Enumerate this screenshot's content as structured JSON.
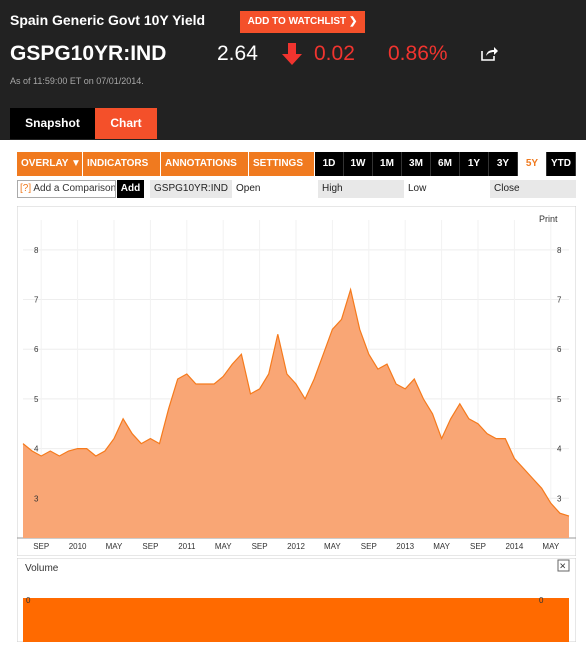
{
  "header": {
    "title": "Spain Generic Govt 10Y Yield",
    "watchlist_label": "ADD TO WATCHLIST",
    "ticker": "GSPG10YR:IND",
    "price": "2.64",
    "change": "0.02",
    "change_pct": "0.86%",
    "as_of": "As of 11:59:00 ET on 07/01/2014.",
    "tabs": [
      "Snapshot",
      "Chart"
    ]
  },
  "toolbar": {
    "menus": [
      "OVERLAY",
      "INDICATORS",
      "ANNOTATIONS",
      "SETTINGS"
    ],
    "ranges": [
      "1D",
      "1W",
      "1M",
      "3M",
      "6M",
      "1Y",
      "3Y",
      "5Y",
      "YTD"
    ],
    "active_range": "5Y"
  },
  "compare": {
    "placeholder": "Add a Comparison",
    "help": "[?]",
    "add_label": "Add",
    "symbol": "GSPG10YR:IND",
    "open_label": "Open",
    "high_label": "High",
    "low_label": "Low",
    "close_label": "Close"
  },
  "print_label": "Print",
  "volume_label": "Volume",
  "volume_close": "×",
  "colors": {
    "header_bg": "#222222",
    "accent": "#f4502a",
    "down": "#f0342f",
    "line": "#f57a1c",
    "fill": "#f9a675",
    "volume": "#ff6a00"
  },
  "chart_data": {
    "type": "area",
    "title": "",
    "xlabel": "",
    "ylabel": "",
    "ylim": [
      2.2,
      8.6
    ],
    "yticks": [
      3,
      4,
      5,
      6,
      7,
      8
    ],
    "x_tick_labels": [
      "SEP",
      "2010",
      "MAY",
      "SEP",
      "2011",
      "MAY",
      "SEP",
      "2012",
      "MAY",
      "SEP",
      "2013",
      "MAY",
      "SEP",
      "2014",
      "MAY"
    ],
    "x_tick_dates": [
      "2009-09",
      "2010-01",
      "2010-05",
      "2010-09",
      "2011-01",
      "2011-05",
      "2011-09",
      "2012-01",
      "2012-05",
      "2012-09",
      "2013-01",
      "2013-05",
      "2013-09",
      "2014-01",
      "2014-05"
    ],
    "x": [
      "2009-07",
      "2009-08",
      "2009-09",
      "2009-10",
      "2009-11",
      "2009-12",
      "2010-01",
      "2010-02",
      "2010-03",
      "2010-04",
      "2010-05",
      "2010-06",
      "2010-07",
      "2010-08",
      "2010-09",
      "2010-10",
      "2010-11",
      "2010-12",
      "2011-01",
      "2011-02",
      "2011-03",
      "2011-04",
      "2011-05",
      "2011-06",
      "2011-07",
      "2011-08",
      "2011-09",
      "2011-10",
      "2011-11",
      "2011-12",
      "2012-01",
      "2012-02",
      "2012-03",
      "2012-04",
      "2012-05",
      "2012-06",
      "2012-07",
      "2012-08",
      "2012-09",
      "2012-10",
      "2012-11",
      "2012-12",
      "2013-01",
      "2013-02",
      "2013-03",
      "2013-04",
      "2013-05",
      "2013-06",
      "2013-07",
      "2013-08",
      "2013-09",
      "2013-10",
      "2013-11",
      "2013-12",
      "2014-01",
      "2014-02",
      "2014-03",
      "2014-04",
      "2014-05",
      "2014-06",
      "2014-07"
    ],
    "series": [
      {
        "values": [
          4.1,
          3.95,
          3.85,
          3.95,
          3.85,
          3.95,
          4.0,
          4.0,
          3.85,
          3.95,
          4.2,
          4.6,
          4.3,
          4.1,
          4.2,
          4.1,
          4.8,
          5.4,
          5.5,
          5.3,
          5.3,
          5.3,
          5.45,
          5.7,
          5.9,
          5.1,
          5.2,
          5.5,
          6.3,
          5.5,
          5.3,
          5.0,
          5.4,
          5.9,
          6.4,
          6.6,
          7.2,
          6.4,
          5.9,
          5.6,
          5.7,
          5.3,
          5.2,
          5.4,
          5.0,
          4.7,
          4.2,
          4.6,
          4.9,
          4.6,
          4.5,
          4.3,
          4.2,
          4.2,
          3.8,
          3.6,
          3.4,
          3.2,
          2.9,
          2.7,
          2.64
        ]
      }
    ],
    "volume_ylabel_ticks": [
      0
    ]
  }
}
